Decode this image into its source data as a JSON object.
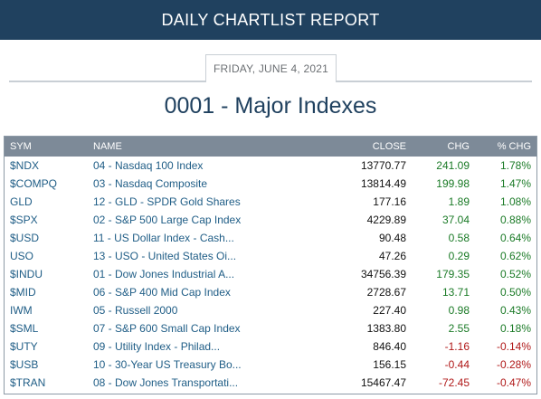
{
  "header": {
    "title": "DAILY CHARTLIST REPORT"
  },
  "report": {
    "date": "FRIDAY, JUNE 4, 2021",
    "list_title": "0001 - Major Indexes"
  },
  "table": {
    "columns": [
      "SYM",
      "NAME",
      "CLOSE",
      "CHG",
      "% CHG"
    ],
    "rows": [
      {
        "sym": "$NDX",
        "name": "04 - Nasdaq 100 Index",
        "close": "13770.77",
        "chg": "241.09",
        "pct": "1.78%",
        "dir": "pos"
      },
      {
        "sym": "$COMPQ",
        "name": "03 - Nasdaq Composite",
        "close": "13814.49",
        "chg": "199.98",
        "pct": "1.47%",
        "dir": "pos"
      },
      {
        "sym": "GLD",
        "name": "12 - GLD - SPDR Gold Shares",
        "close": "177.16",
        "chg": "1.89",
        "pct": "1.08%",
        "dir": "pos"
      },
      {
        "sym": "$SPX",
        "name": "02 - S&P 500 Large Cap Index",
        "close": "4229.89",
        "chg": "37.04",
        "pct": "0.88%",
        "dir": "pos"
      },
      {
        "sym": "$USD",
        "name": "11 - US Dollar Index - Cash...",
        "close": "90.48",
        "chg": "0.58",
        "pct": "0.64%",
        "dir": "pos"
      },
      {
        "sym": "USO",
        "name": "13 - USO - United States Oi...",
        "close": "47.26",
        "chg": "0.29",
        "pct": "0.62%",
        "dir": "pos"
      },
      {
        "sym": "$INDU",
        "name": "01 - Dow Jones Industrial A...",
        "close": "34756.39",
        "chg": "179.35",
        "pct": "0.52%",
        "dir": "pos"
      },
      {
        "sym": "$MID",
        "name": "06 - S&P 400 Mid Cap Index",
        "close": "2728.67",
        "chg": "13.71",
        "pct": "0.50%",
        "dir": "pos"
      },
      {
        "sym": "IWM",
        "name": "05 - Russell 2000",
        "close": "227.40",
        "chg": "0.98",
        "pct": "0.43%",
        "dir": "pos"
      },
      {
        "sym": "$SML",
        "name": "07 - S&P 600 Small Cap Index",
        "close": "1383.80",
        "chg": "2.55",
        "pct": "0.18%",
        "dir": "pos"
      },
      {
        "sym": "$UTY",
        "name": "09 - Utility Index - Philad...",
        "close": "846.40",
        "chg": "-1.16",
        "pct": "-0.14%",
        "dir": "neg"
      },
      {
        "sym": "$USB",
        "name": "10 - 30-Year US Treasury Bo...",
        "close": "156.15",
        "chg": "-0.44",
        "pct": "-0.28%",
        "dir": "neg"
      },
      {
        "sym": "$TRAN",
        "name": "08 - Dow Jones Transportati...",
        "close": "15467.47",
        "chg": "-72.45",
        "pct": "-0.47%",
        "dir": "neg"
      }
    ]
  },
  "colors": {
    "header_bg": "#20415f",
    "table_header_bg": "#7d8a98",
    "positive": "#1a7a26",
    "negative": "#b01818",
    "link": "#1f5d86"
  }
}
